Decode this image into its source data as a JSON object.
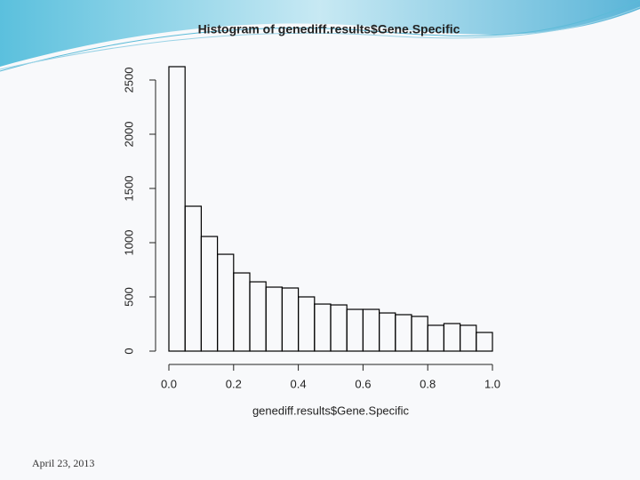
{
  "chart_data": {
    "type": "histogram",
    "title": "Histogram of genediff.results$Gene.Specific",
    "xlabel": "genediff.results$Gene.Specific",
    "bins": [
      0,
      0.05,
      0.1,
      0.15,
      0.2,
      0.25,
      0.3,
      0.35,
      0.4,
      0.45,
      0.5,
      0.55,
      0.6,
      0.65,
      0.7,
      0.75,
      0.8,
      0.85,
      0.9,
      0.95,
      1
    ],
    "counts": [
      2623,
      1336,
      1057,
      893,
      721,
      639,
      590,
      582,
      500,
      434,
      426,
      385,
      385,
      352,
      336,
      320,
      238,
      254,
      238,
      172
    ],
    "color": "#000000",
    "xlim": [
      0,
      1
    ],
    "ylim": [
      0,
      2500
    ],
    "xticks": [
      {
        "value": 0,
        "label": "0.0"
      },
      0.2,
      0.4,
      0.6,
      0.8,
      {
        "value": 1,
        "label": "1.0"
      }
    ],
    "yticks": [
      0,
      500,
      1000,
      1500,
      2000,
      2500
    ]
  },
  "footer": {
    "date": "April 23, 2013"
  }
}
